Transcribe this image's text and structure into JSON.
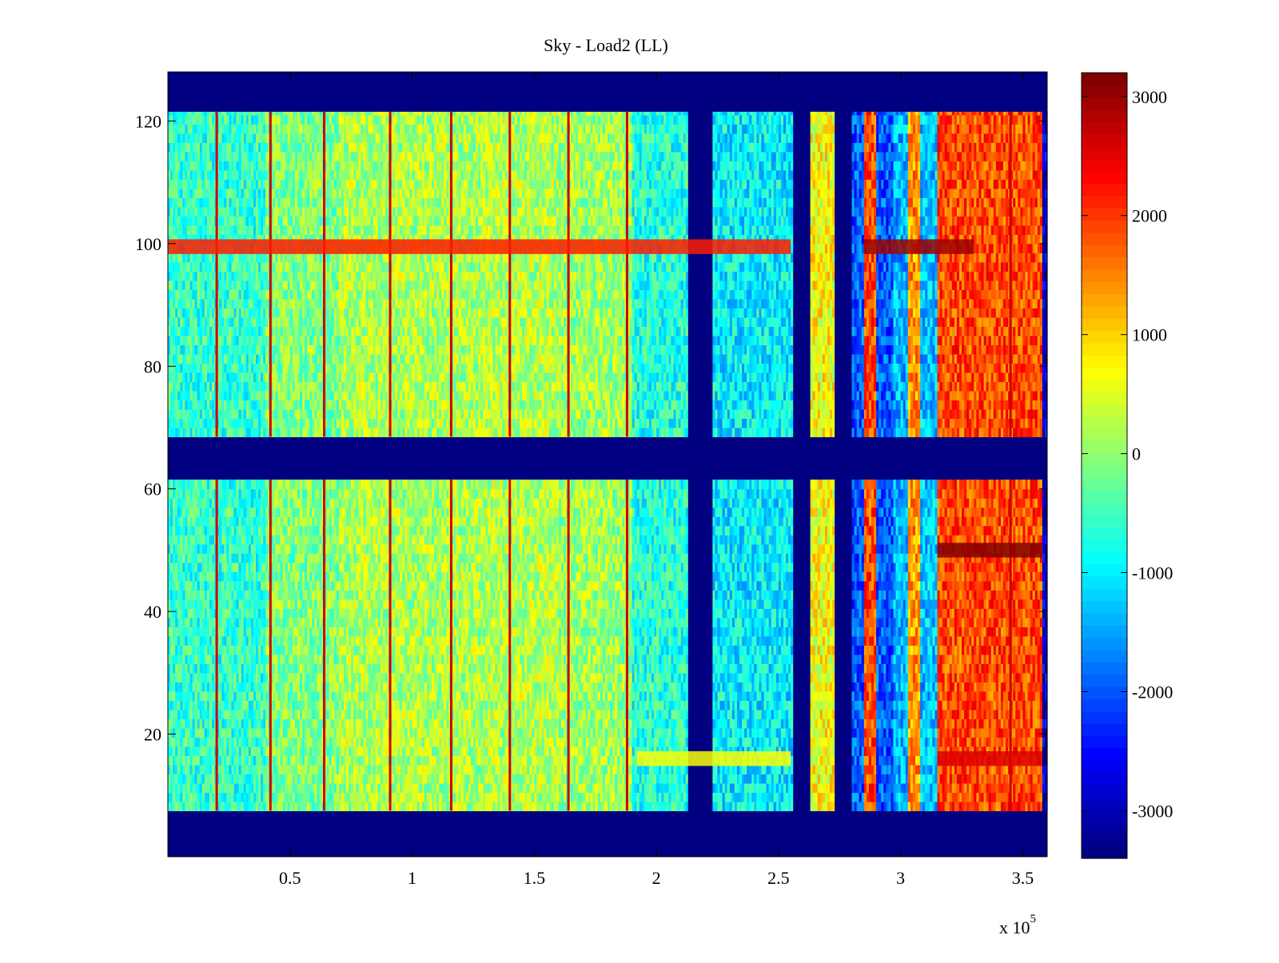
{
  "chart_data": {
    "type": "heatmap",
    "title": "Sky - Load2 (LL)",
    "xlabel": "",
    "ylabel": "",
    "x_multiplier_label": "x 10",
    "x_multiplier_exponent": "5",
    "xlim": [
      0,
      3.6
    ],
    "ylim": [
      0,
      128
    ],
    "colormap": "jet",
    "clim": [
      -3400,
      3200
    ],
    "xticks": [
      {
        "value": 0.5,
        "label": "0.5"
      },
      {
        "value": 1,
        "label": "1"
      },
      {
        "value": 1.5,
        "label": "1.5"
      },
      {
        "value": 2,
        "label": "2"
      },
      {
        "value": 2.5,
        "label": "2.5"
      },
      {
        "value": 3,
        "label": "3"
      },
      {
        "value": 3.5,
        "label": "3.5"
      }
    ],
    "yticks": [
      {
        "value": 20,
        "label": "20"
      },
      {
        "value": 40,
        "label": "40"
      },
      {
        "value": 60,
        "label": "60"
      },
      {
        "value": 80,
        "label": "80"
      },
      {
        "value": 100,
        "label": "100"
      },
      {
        "value": 120,
        "label": "120"
      }
    ],
    "colorbar_ticks": [
      {
        "value": 3000,
        "label": "3000"
      },
      {
        "value": 2000,
        "label": "2000"
      },
      {
        "value": 1000,
        "label": "1000"
      },
      {
        "value": 0,
        "label": "0"
      },
      {
        "value": -1000,
        "label": "-1000"
      },
      {
        "value": -2000,
        "label": "-2000"
      },
      {
        "value": -3000,
        "label": "-3000"
      }
    ],
    "blank_row_bands": [
      [
        121.5,
        128
      ],
      [
        61.5,
        68.5
      ],
      [
        0,
        7.5
      ]
    ],
    "channel_row_bands": [
      [
        7.5,
        61.5
      ],
      [
        68.5,
        121.5
      ]
    ],
    "column_segments": [
      {
        "x": [
          0,
          0.4
        ],
        "mean": -600
      },
      {
        "x": [
          0.4,
          0.7
        ],
        "mean": -100
      },
      {
        "x": [
          0.7,
          1.3
        ],
        "mean": 200
      },
      {
        "x": [
          1.3,
          1.6
        ],
        "mean": 250
      },
      {
        "x": [
          1.6,
          1.9
        ],
        "mean": 100
      },
      {
        "x": [
          1.9,
          2.13
        ],
        "mean": -700
      },
      {
        "x": [
          2.13,
          2.23
        ],
        "mean": -3400
      },
      {
        "x": [
          2.23,
          2.56
        ],
        "mean": -1000
      },
      {
        "x": [
          2.56,
          2.63
        ],
        "mean": -3400
      },
      {
        "x": [
          2.63,
          2.73
        ],
        "mean": 700
      },
      {
        "x": [
          2.73,
          2.8
        ],
        "mean": -3400
      },
      {
        "x": [
          2.8,
          2.85
        ],
        "mean": -2000
      },
      {
        "x": [
          2.85,
          2.9
        ],
        "mean": 1900
      },
      {
        "x": [
          2.9,
          2.97
        ],
        "mean": -2000
      },
      {
        "x": [
          2.97,
          3.03
        ],
        "mean": -1400
      },
      {
        "x": [
          3.03,
          3.08
        ],
        "mean": 1400
      },
      {
        "x": [
          3.08,
          3.15
        ],
        "mean": -1300
      },
      {
        "x": [
          3.15,
          3.58
        ],
        "mean": 1900
      },
      {
        "x": [
          3.58,
          3.6
        ],
        "mean": -2900
      }
    ],
    "spike_columns": [
      0.2,
      0.42,
      0.64,
      0.91,
      1.16,
      1.4,
      1.64,
      1.88,
      3.45
    ],
    "hot_rows": [
      {
        "y": 99.5,
        "x": [
          0,
          2.55
        ],
        "value": 2200
      },
      {
        "y": 99.5,
        "x": [
          2.85,
          3.3
        ],
        "value": 3000
      },
      {
        "y": 50,
        "x": [
          3.15,
          3.58
        ],
        "value": 3200
      },
      {
        "y": 16,
        "x": [
          3.15,
          3.58
        ],
        "value": 2600
      },
      {
        "y": 16,
        "x": [
          1.92,
          2.55
        ],
        "value": 700
      }
    ]
  }
}
